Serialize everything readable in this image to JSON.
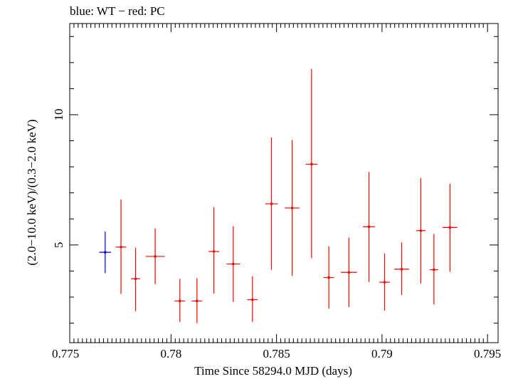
{
  "chart_data": {
    "type": "scatter",
    "title": "blue: WT − red: PC",
    "xlabel": "Time Since 58294.0 MJD (days)",
    "ylabel": "(2.0−10.0 keV)/(0.3−2.0 keV)",
    "xlim": [
      0.7752,
      0.7955
    ],
    "ylim": [
      1.25,
      13.5
    ],
    "xticks": [
      {
        "value": 0.775,
        "label": "0.775"
      },
      {
        "value": 0.78,
        "label": "0.78"
      },
      {
        "value": 0.785,
        "label": "0.785"
      },
      {
        "value": 0.79,
        "label": "0.79"
      },
      {
        "value": 0.795,
        "label": "0.795"
      }
    ],
    "yticks": [
      {
        "value": 5,
        "label": "5"
      },
      {
        "value": 10,
        "label": "10"
      }
    ],
    "grid": false,
    "series": [
      {
        "color": "#0000ff",
        "points": [
          {
            "x": 0.77688,
            "xerr": 0.00028,
            "y": 4.72,
            "ylo": 3.92,
            "yhi": 5.52
          }
        ]
      },
      {
        "color": "#ff0000",
        "points": [
          {
            "x": 0.77763,
            "xerr": 0.00025,
            "y": 4.92,
            "ylo": 3.12,
            "yhi": 6.75
          },
          {
            "x": 0.77832,
            "xerr": 0.00021,
            "y": 3.7,
            "ylo": 2.46,
            "yhi": 4.9
          },
          {
            "x": 0.77925,
            "xerr": 0.00045,
            "y": 4.56,
            "ylo": 3.5,
            "yhi": 5.63
          },
          {
            "x": 0.78042,
            "xerr": 0.00025,
            "y": 2.85,
            "ylo": 2.05,
            "yhi": 3.7
          },
          {
            "x": 0.78123,
            "xerr": 0.00025,
            "y": 2.85,
            "ylo": 2.0,
            "yhi": 3.72
          },
          {
            "x": 0.78203,
            "xerr": 0.00025,
            "y": 4.75,
            "ylo": 3.13,
            "yhi": 6.45
          },
          {
            "x": 0.78295,
            "xerr": 0.00032,
            "y": 4.27,
            "ylo": 2.82,
            "yhi": 5.72
          },
          {
            "x": 0.78386,
            "xerr": 0.00025,
            "y": 2.9,
            "ylo": 2.05,
            "yhi": 3.8
          },
          {
            "x": 0.78476,
            "xerr": 0.0003,
            "y": 6.58,
            "ylo": 4.05,
            "yhi": 9.12
          },
          {
            "x": 0.78574,
            "xerr": 0.00035,
            "y": 6.42,
            "ylo": 3.82,
            "yhi": 9.03
          },
          {
            "x": 0.78666,
            "xerr": 0.00028,
            "y": 8.1,
            "ylo": 4.5,
            "yhi": 11.75
          },
          {
            "x": 0.78748,
            "xerr": 0.00025,
            "y": 3.75,
            "ylo": 2.56,
            "yhi": 4.95
          },
          {
            "x": 0.78843,
            "xerr": 0.00038,
            "y": 3.95,
            "ylo": 2.62,
            "yhi": 5.28
          },
          {
            "x": 0.78938,
            "xerr": 0.00028,
            "y": 5.7,
            "ylo": 3.58,
            "yhi": 7.8
          },
          {
            "x": 0.79012,
            "xerr": 0.00025,
            "y": 3.57,
            "ylo": 2.48,
            "yhi": 4.68
          },
          {
            "x": 0.79093,
            "xerr": 0.00035,
            "y": 4.07,
            "ylo": 3.08,
            "yhi": 5.1
          },
          {
            "x": 0.79184,
            "xerr": 0.00022,
            "y": 5.55,
            "ylo": 3.52,
            "yhi": 7.57
          },
          {
            "x": 0.79246,
            "xerr": 0.0002,
            "y": 4.05,
            "ylo": 2.72,
            "yhi": 5.42
          },
          {
            "x": 0.79322,
            "xerr": 0.00035,
            "y": 5.67,
            "ylo": 3.97,
            "yhi": 7.35
          }
        ]
      }
    ]
  }
}
